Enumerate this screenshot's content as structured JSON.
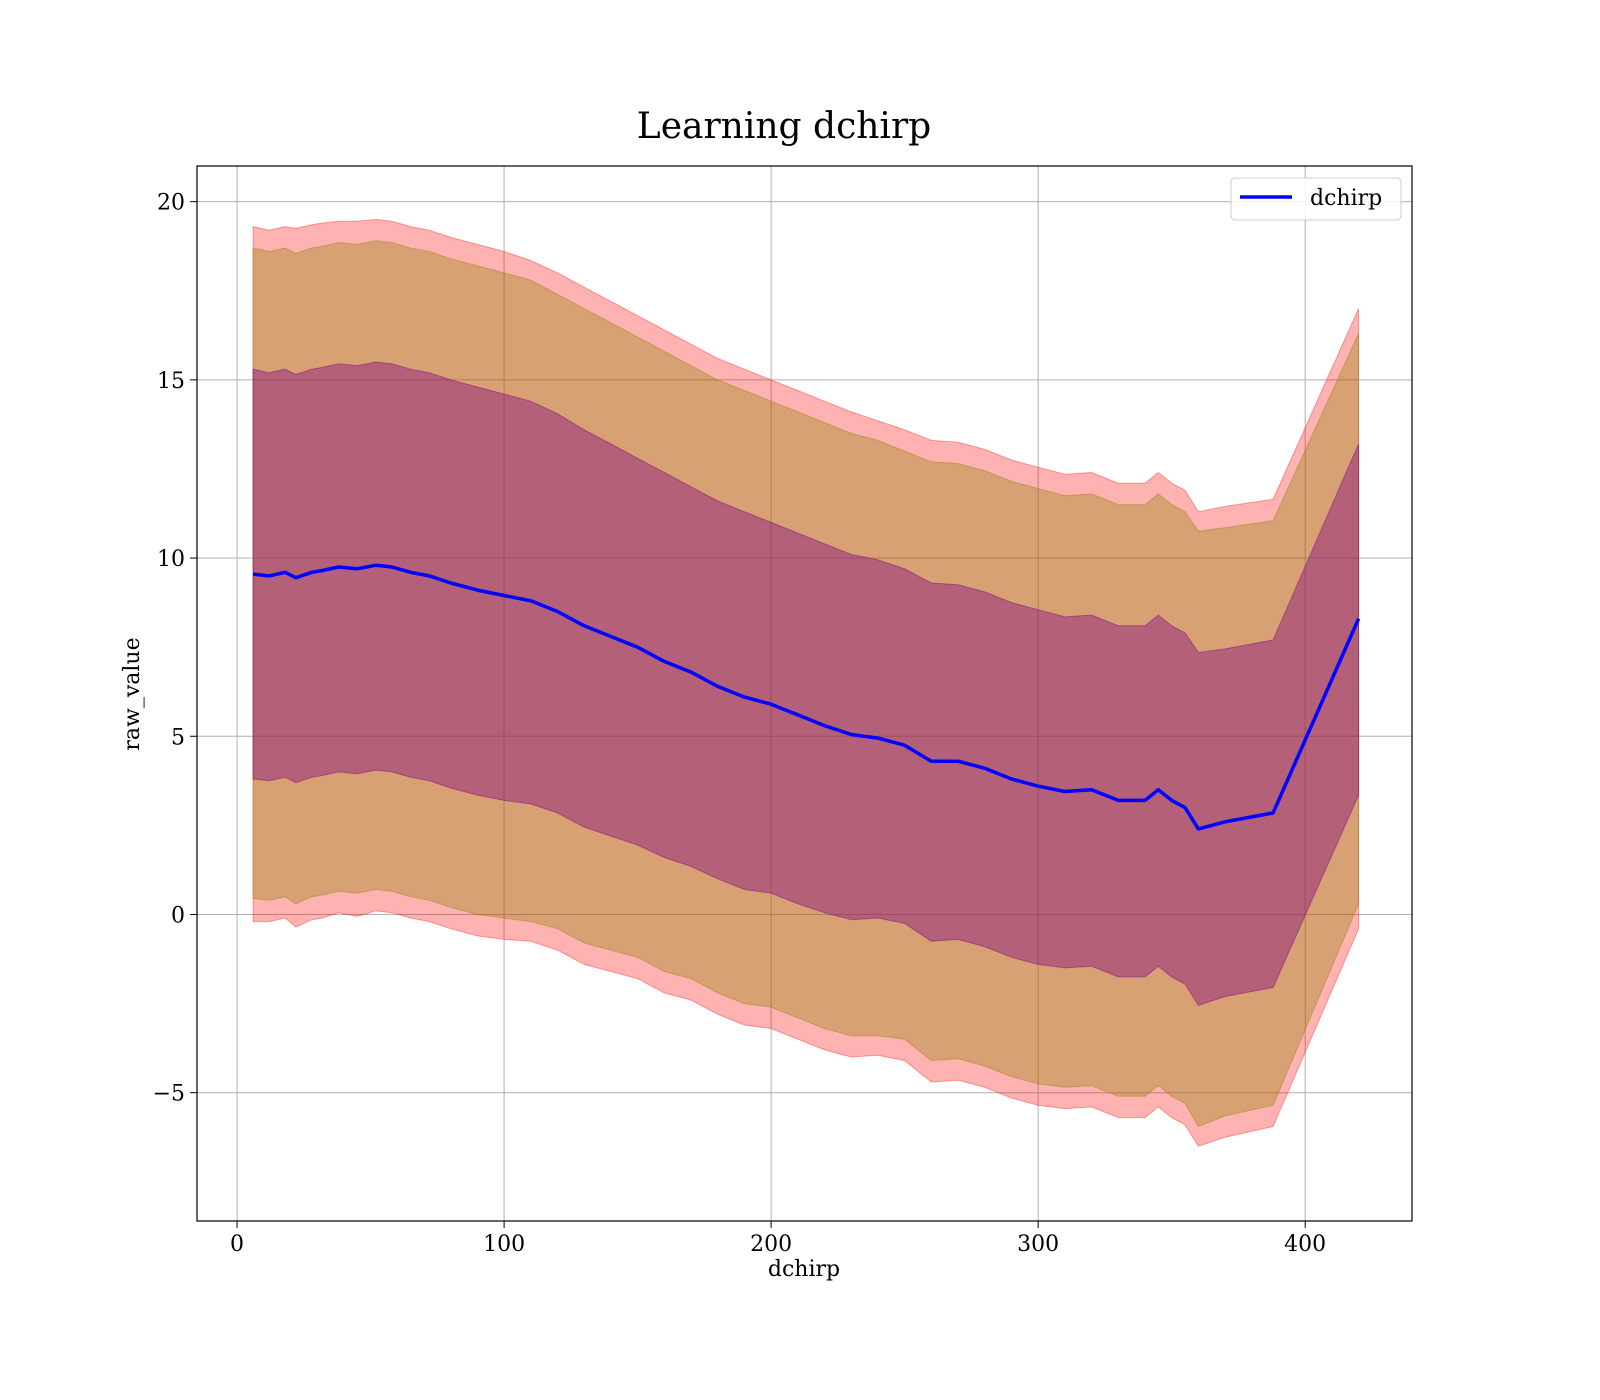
{
  "chart_data": {
    "type": "line",
    "title": "Learning dchirp",
    "xlabel": "dchirp",
    "ylabel": "raw_value",
    "xlim": [
      -15,
      440
    ],
    "ylim": [
      -8.6,
      21
    ],
    "xticks": [
      0,
      100,
      200,
      300,
      400
    ],
    "yticks": [
      -5,
      0,
      5,
      10,
      15,
      20
    ],
    "xtick_labels": [
      "0",
      "100",
      "200",
      "300",
      "400"
    ],
    "ytick_labels": [
      "−5",
      "0",
      "5",
      "10",
      "15",
      "20"
    ],
    "grid": true,
    "legend_position": "upper right",
    "colors": {
      "line": "#0000ff",
      "band_3sigma": "#ff0000",
      "band_2sigma": "#8b8000",
      "band_1sigma": "#800080",
      "grid": "#b0b0b0"
    },
    "series": [
      {
        "name": "dchirp",
        "x": [
          6,
          12,
          18,
          22,
          28,
          32,
          38,
          45,
          52,
          58,
          65,
          72,
          80,
          90,
          100,
          110,
          120,
          130,
          140,
          150,
          160,
          170,
          180,
          190,
          200,
          210,
          220,
          230,
          240,
          250,
          260,
          270,
          280,
          290,
          300,
          310,
          320,
          330,
          340,
          345,
          350,
          355,
          360,
          370,
          388,
          420
        ],
        "y": [
          9.55,
          9.5,
          9.6,
          9.45,
          9.6,
          9.65,
          9.75,
          9.7,
          9.8,
          9.75,
          9.6,
          9.5,
          9.3,
          9.1,
          8.95,
          8.8,
          8.5,
          8.1,
          7.8,
          7.5,
          7.1,
          6.8,
          6.4,
          6.1,
          5.9,
          5.6,
          5.3,
          5.05,
          4.95,
          4.75,
          4.3,
          4.3,
          4.1,
          3.8,
          3.6,
          3.45,
          3.5,
          3.2,
          3.2,
          3.5,
          3.2,
          3.0,
          2.4,
          2.6,
          2.85,
          8.3
        ]
      }
    ],
    "bands": [
      {
        "level": "3 sigma",
        "upper": [
          19.3,
          19.2,
          19.3,
          19.25,
          19.35,
          19.4,
          19.45,
          19.45,
          19.5,
          19.45,
          19.3,
          19.2,
          19.0,
          18.8,
          18.6,
          18.35,
          18.0,
          17.6,
          17.2,
          16.8,
          16.4,
          16.0,
          15.6,
          15.3,
          15.0,
          14.7,
          14.4,
          14.1,
          13.85,
          13.6,
          13.3,
          13.25,
          13.05,
          12.75,
          12.55,
          12.35,
          12.4,
          12.1,
          12.1,
          12.4,
          12.1,
          11.9,
          11.3,
          11.45,
          11.65,
          17.0
        ],
        "lower": [
          -0.2,
          -0.2,
          -0.1,
          -0.35,
          -0.15,
          -0.1,
          0.05,
          -0.05,
          0.1,
          0.05,
          -0.1,
          -0.2,
          -0.4,
          -0.6,
          -0.7,
          -0.75,
          -1.0,
          -1.4,
          -1.6,
          -1.8,
          -2.2,
          -2.4,
          -2.8,
          -3.1,
          -3.2,
          -3.5,
          -3.8,
          -4.0,
          -3.95,
          -4.1,
          -4.7,
          -4.65,
          -4.85,
          -5.15,
          -5.35,
          -5.45,
          -5.4,
          -5.7,
          -5.7,
          -5.4,
          -5.7,
          -5.9,
          -6.5,
          -6.25,
          -5.95,
          -0.4
        ]
      },
      {
        "level": "2 sigma",
        "upper": [
          18.7,
          18.6,
          18.7,
          18.55,
          18.7,
          18.75,
          18.85,
          18.8,
          18.9,
          18.85,
          18.7,
          18.6,
          18.4,
          18.2,
          18.0,
          17.8,
          17.4,
          17.0,
          16.6,
          16.2,
          15.8,
          15.4,
          15.0,
          14.7,
          14.4,
          14.1,
          13.8,
          13.5,
          13.3,
          13.0,
          12.7,
          12.65,
          12.45,
          12.15,
          11.95,
          11.75,
          11.8,
          11.5,
          11.5,
          11.8,
          11.5,
          11.3,
          10.75,
          10.85,
          11.05,
          16.3
        ]
      },
      {
        "level": "2 sigma lower",
        "lower": [
          0.45,
          0.4,
          0.5,
          0.3,
          0.5,
          0.55,
          0.65,
          0.6,
          0.7,
          0.65,
          0.5,
          0.4,
          0.2,
          0.0,
          -0.1,
          -0.2,
          -0.4,
          -0.8,
          -1.0,
          -1.2,
          -1.6,
          -1.8,
          -2.2,
          -2.5,
          -2.6,
          -2.9,
          -3.2,
          -3.4,
          -3.4,
          -3.5,
          -4.1,
          -4.05,
          -4.25,
          -4.55,
          -4.75,
          -4.85,
          -4.8,
          -5.1,
          -5.1,
          -4.8,
          -5.1,
          -5.3,
          -5.95,
          -5.65,
          -5.35,
          0.3
        ]
      },
      {
        "level": "1 sigma",
        "upper": [
          15.3,
          15.2,
          15.3,
          15.15,
          15.3,
          15.35,
          15.45,
          15.4,
          15.5,
          15.45,
          15.3,
          15.2,
          15.0,
          14.8,
          14.6,
          14.4,
          14.05,
          13.6,
          13.2,
          12.8,
          12.4,
          12.0,
          11.6,
          11.3,
          11.0,
          10.7,
          10.4,
          10.1,
          9.95,
          9.7,
          9.3,
          9.25,
          9.05,
          8.75,
          8.55,
          8.35,
          8.4,
          8.1,
          8.1,
          8.4,
          8.1,
          7.9,
          7.35,
          7.45,
          7.7,
          13.2
        ],
        "lower": [
          3.8,
          3.75,
          3.85,
          3.7,
          3.85,
          3.9,
          4.0,
          3.95,
          4.05,
          4.0,
          3.85,
          3.75,
          3.55,
          3.35,
          3.2,
          3.1,
          2.85,
          2.45,
          2.2,
          1.95,
          1.6,
          1.35,
          1.0,
          0.7,
          0.6,
          0.3,
          0.05,
          -0.15,
          -0.1,
          -0.25,
          -0.75,
          -0.7,
          -0.9,
          -1.2,
          -1.4,
          -1.5,
          -1.45,
          -1.75,
          -1.75,
          -1.45,
          -1.75,
          -1.95,
          -2.55,
          -2.3,
          -2.05,
          3.35
        ]
      }
    ]
  }
}
